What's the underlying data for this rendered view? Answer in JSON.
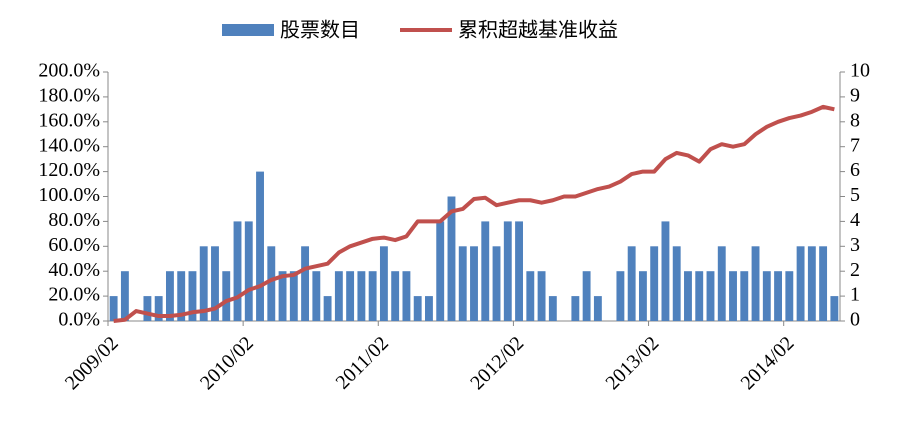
{
  "chart_data": {
    "type": "bar-line",
    "categories": [
      "2009/02",
      null,
      null,
      null,
      null,
      null,
      null,
      null,
      null,
      null,
      null,
      null,
      "2010/02",
      null,
      null,
      null,
      null,
      null,
      null,
      null,
      null,
      null,
      null,
      null,
      "2011/02",
      null,
      null,
      null,
      null,
      null,
      null,
      null,
      null,
      null,
      null,
      null,
      "2012/02",
      null,
      null,
      null,
      null,
      null,
      null,
      null,
      null,
      null,
      null,
      null,
      "2013/02",
      null,
      null,
      null,
      null,
      null,
      null,
      null,
      null,
      null,
      null,
      null,
      "2014/02",
      null,
      null,
      null,
      null
    ],
    "series": [
      {
        "name": "股票数目",
        "type": "bar",
        "axis": "y2",
        "color": "#4f81bd",
        "values": [
          1,
          2,
          0,
          1,
          1,
          2,
          2,
          2,
          3,
          3,
          2,
          4,
          4,
          6,
          3,
          2,
          2,
          3,
          2,
          1,
          2,
          2,
          2,
          2,
          3,
          2,
          2,
          1,
          1,
          4,
          5,
          3,
          3,
          4,
          3,
          4,
          4,
          2,
          2,
          1,
          0,
          1,
          2,
          1,
          0,
          2,
          3,
          2,
          3,
          4,
          3,
          2,
          2,
          2,
          3,
          2,
          2,
          3,
          2,
          2,
          2,
          3,
          3,
          3,
          1
        ]
      },
      {
        "name": "累积超越基准收益",
        "type": "line",
        "axis": "y",
        "color": "#c0504d",
        "values": [
          0,
          1,
          8,
          6,
          4,
          4,
          5,
          7,
          8,
          10,
          16,
          19,
          25,
          28,
          33,
          36,
          37,
          42,
          44,
          46,
          55,
          60,
          63,
          66,
          67,
          65,
          68,
          80,
          80,
          80,
          88,
          90,
          98,
          99,
          93,
          95,
          97,
          97,
          95,
          97,
          100,
          100,
          103,
          106,
          108,
          112,
          118,
          120,
          120,
          130,
          135,
          133,
          128,
          138,
          142,
          140,
          142,
          150,
          156,
          160,
          163,
          165,
          168,
          172,
          170
        ]
      }
    ],
    "ylim": [
      0,
      200
    ],
    "yticks": [
      {
        "value": 0,
        "label": "0.0%"
      },
      {
        "value": 20,
        "label": "20.0%"
      },
      {
        "value": 40,
        "label": "40.0%"
      },
      {
        "value": 60,
        "label": "60.0%"
      },
      {
        "value": 80,
        "label": "80.0%"
      },
      {
        "value": 100,
        "label": "100.0%"
      },
      {
        "value": 120,
        "label": "120.0%"
      },
      {
        "value": 140,
        "label": "140.0%"
      },
      {
        "value": 160,
        "label": "160.0%"
      },
      {
        "value": 180,
        "label": "180.0%"
      },
      {
        "value": 200,
        "label": "200.0%"
      }
    ],
    "y2lim": [
      0,
      10
    ],
    "y2ticks": [
      0,
      1,
      2,
      3,
      4,
      5,
      6,
      7,
      8,
      9,
      10
    ],
    "legend": "top"
  }
}
